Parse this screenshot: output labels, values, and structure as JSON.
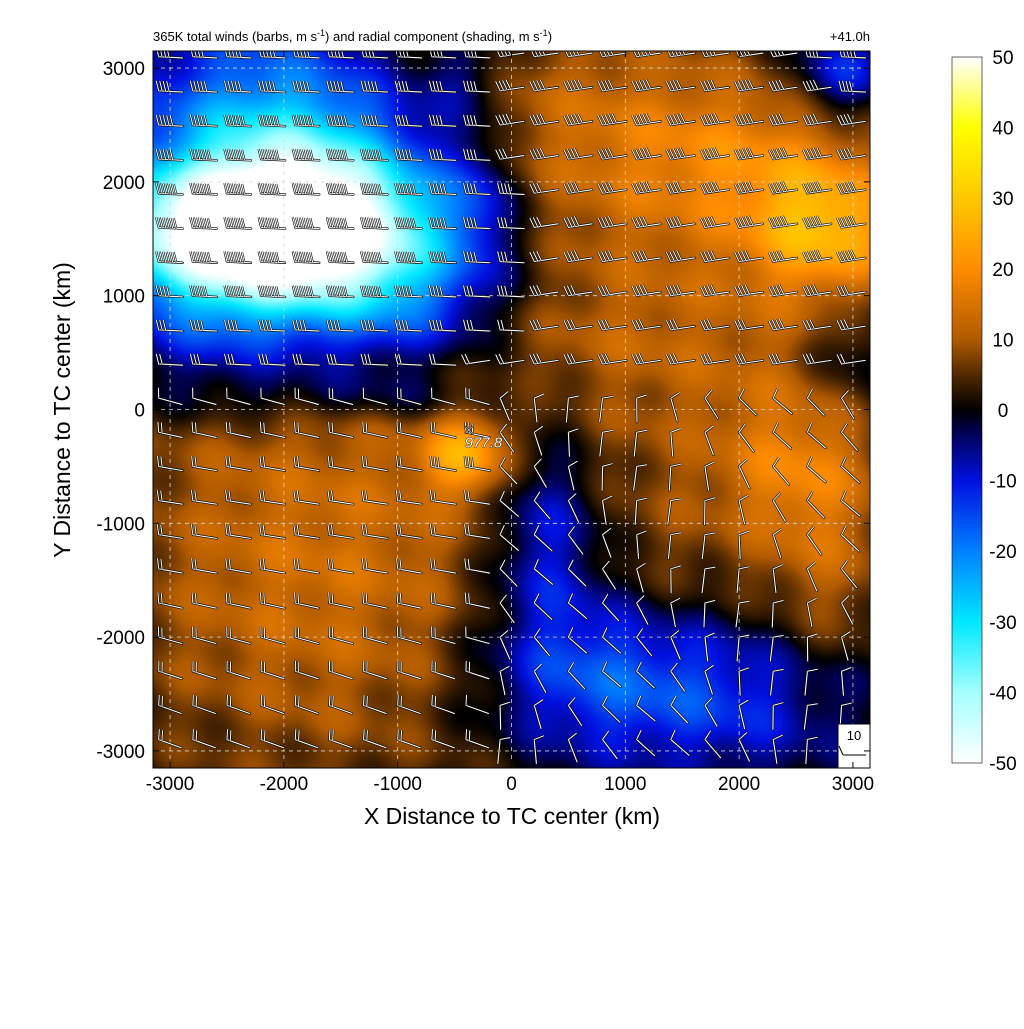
{
  "chart_data": {
    "type": "heatmap",
    "title": "365K total winds (barbs, m s",
    "title_mid": ") and radial component (shading, m s",
    "title_end": ")",
    "title_sup": "-1",
    "time_label": "+41.0h",
    "xlabel": "X Distance to TC center (km)",
    "ylabel": "Y Distance to TC center (km)",
    "xlim": [
      -3150,
      3150
    ],
    "ylim": [
      -3150,
      3150
    ],
    "xticks": [
      -3000,
      -2000,
      -1000,
      0,
      1000,
      2000,
      3000
    ],
    "yticks": [
      -3000,
      -2000,
      -1000,
      0,
      1000,
      2000,
      3000
    ],
    "grid": true,
    "center_marker": {
      "x": -200,
      "y": -300,
      "label": "977.8"
    },
    "reference_barb": {
      "label": "10"
    },
    "colorbar": {
      "min": -50,
      "max": 50,
      "ticks": [
        50,
        40,
        30,
        20,
        10,
        0,
        -10,
        -20,
        -30,
        -40,
        -50
      ],
      "colors": [
        {
          "v": -50,
          "c": "#ffffff"
        },
        {
          "v": -40,
          "c": "#a6ffff"
        },
        {
          "v": -30,
          "c": "#00e8ff"
        },
        {
          "v": -20,
          "c": "#0080ff"
        },
        {
          "v": -10,
          "c": "#0010e0"
        },
        {
          "v": -3,
          "c": "#000050"
        },
        {
          "v": 0,
          "c": "#000000"
        },
        {
          "v": 4,
          "c": "#402000"
        },
        {
          "v": 10,
          "c": "#b05a00"
        },
        {
          "v": 20,
          "c": "#ff8c00"
        },
        {
          "v": 30,
          "c": "#ffc800"
        },
        {
          "v": 40,
          "c": "#ffff00"
        },
        {
          "v": 50,
          "c": "#ffffff"
        }
      ]
    },
    "features": [
      {
        "x": -2400,
        "y": 1550,
        "sx": 900,
        "sy": 420,
        "v": -48
      },
      {
        "x": -1500,
        "y": 1700,
        "sx": 900,
        "sy": 650,
        "v": -30
      },
      {
        "x": -2200,
        "y": 2500,
        "sx": 800,
        "sy": 700,
        "v": -20
      },
      {
        "x": -1000,
        "y": 900,
        "sx": 700,
        "sy": 500,
        "v": -15
      },
      {
        "x": -2600,
        "y": 700,
        "sx": 600,
        "sy": 400,
        "v": -12
      },
      {
        "x": -400,
        "y": 2900,
        "sx": 250,
        "sy": 250,
        "v": -8
      },
      {
        "x": -300,
        "y": 1900,
        "sx": 200,
        "sy": 400,
        "v": -8
      },
      {
        "x": 700,
        "y": 2400,
        "sx": 1200,
        "sy": 800,
        "v": 14
      },
      {
        "x": 2800,
        "y": 1600,
        "sx": 500,
        "sy": 450,
        "v": 22
      },
      {
        "x": 2100,
        "y": 2200,
        "sx": 700,
        "sy": 500,
        "v": 10
      },
      {
        "x": 2900,
        "y": 2950,
        "sx": 300,
        "sy": 250,
        "v": -14
      },
      {
        "x": 1400,
        "y": 600,
        "sx": 1600,
        "sy": 700,
        "v": 10
      },
      {
        "x": -1700,
        "y": -1300,
        "sx": 1400,
        "sy": 1500,
        "v": 14
      },
      {
        "x": -400,
        "y": -400,
        "sx": 250,
        "sy": 250,
        "v": 18
      },
      {
        "x": 300,
        "y": -1100,
        "sx": 350,
        "sy": 650,
        "v": -14
      },
      {
        "x": 700,
        "y": -2300,
        "sx": 700,
        "sy": 500,
        "v": -14
      },
      {
        "x": 1900,
        "y": -2500,
        "sx": 900,
        "sy": 500,
        "v": -13
      },
      {
        "x": 2800,
        "y": -1500,
        "sx": 450,
        "sy": 800,
        "v": 10
      },
      {
        "x": 2500,
        "y": -500,
        "sx": 500,
        "sy": 500,
        "v": 12
      },
      {
        "x": 1500,
        "y": -1300,
        "sx": 600,
        "sy": 900,
        "v": 6
      },
      {
        "x": 3000,
        "y": 500,
        "sx": 300,
        "sy": 400,
        "v": -8
      },
      {
        "x": -1300,
        "y": 100,
        "sx": 1200,
        "sy": 160,
        "v": -6
      }
    ]
  }
}
